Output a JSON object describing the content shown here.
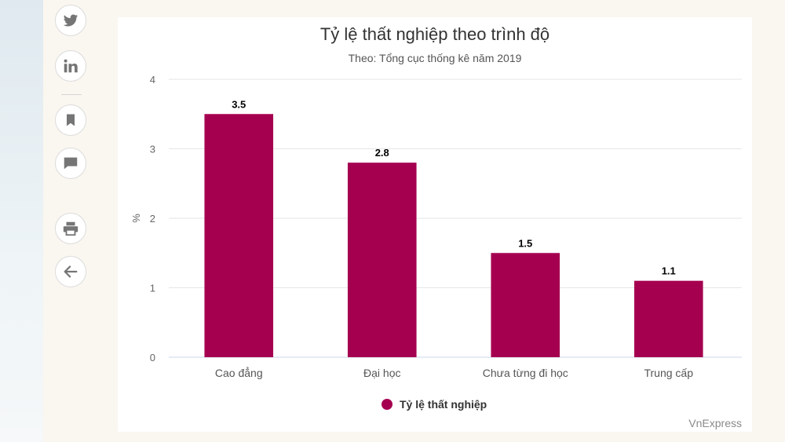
{
  "share": {
    "items": [
      {
        "name": "twitter-icon",
        "label": "Twitter"
      },
      {
        "name": "linkedin-icon",
        "label": "LinkedIn"
      },
      {
        "name": "bookmark-icon",
        "label": "Bookmark"
      },
      {
        "name": "comment-icon",
        "label": "Comment"
      },
      {
        "name": "print-icon",
        "label": "Print"
      },
      {
        "name": "back-arrow-icon",
        "label": "Back"
      }
    ],
    "icon_color": "#757575"
  },
  "chart_data": {
    "type": "bar",
    "title": "Tỷ lệ thất nghiệp theo trình độ",
    "subtitle": "Theo: Tổng cục thống kê năm 2019",
    "ylabel": "%",
    "xlabel": "",
    "categories": [
      "Cao đẳng",
      "Đại học",
      "Chưa từng đi học",
      "Trung cấp"
    ],
    "series": [
      {
        "name": "Tỷ lệ thất nghiệp",
        "values": [
          3.5,
          2.8,
          1.5,
          1.1
        ],
        "color": "#a50050"
      }
    ],
    "ylim": [
      0,
      4
    ],
    "yticks": [
      0,
      1,
      2,
      3,
      4
    ],
    "grid": true,
    "legend": "bottom-center",
    "data_labels": true
  },
  "credit": "VnExpress"
}
